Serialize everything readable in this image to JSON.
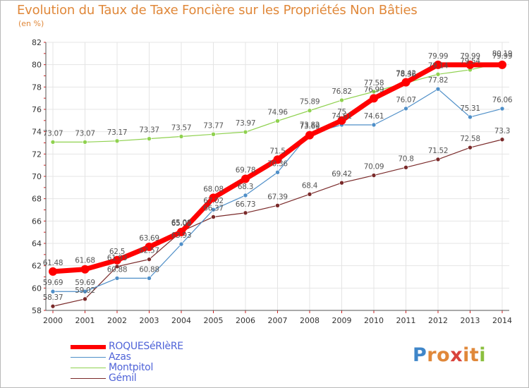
{
  "title": "Evolution du Taux de Taxe Foncière sur les Propriétés Non Bâties",
  "unit_label": "(en %)",
  "logo": {
    "text": "Proxiti",
    "letters": [
      "P",
      "r",
      "o",
      "x",
      "i",
      "t",
      "i"
    ],
    "colors": [
      "#3f86c9",
      "#e0883a",
      "#e0883a",
      "#d9433c",
      "#e0883a",
      "#e0883a",
      "#8bbf3f"
    ]
  },
  "chart_data": {
    "type": "line",
    "title": "Evolution du Taux de Taxe Foncière sur les Propriétés Non Bâties",
    "ylabel": "(en %)",
    "xlabel": "",
    "x": [
      "2000",
      "2001",
      "2002",
      "2003",
      "2004",
      "2005",
      "2006",
      "2007",
      "2008",
      "2009",
      "2010",
      "2011",
      "2012",
      "2013",
      "2014"
    ],
    "ylim": [
      58,
      82
    ],
    "yticks": [
      "58",
      "60",
      "62",
      "64",
      "66",
      "68",
      "70",
      "72",
      "74",
      "76",
      "78",
      "80",
      "82"
    ],
    "grid": true,
    "legend_position": "bottom-left",
    "series": [
      {
        "name": "ROQUESéRIèRE",
        "color": "#ff0000",
        "values": [
          61.48,
          61.68,
          62.5,
          63.69,
          65.02,
          68.08,
          69.78,
          71.5,
          73.69,
          75,
          76.99,
          78.42,
          79.99,
          79.99,
          79.99
        ],
        "labels": [
          "61.48",
          "61.68",
          "62.5",
          "63.69",
          "65.02",
          "68.08",
          "69.78",
          "71.5",
          "73.69",
          "75",
          "76.99",
          "78.42",
          "79.99",
          "79.99",
          "79.99"
        ]
      },
      {
        "name": "Azas",
        "color": "#4f8fc8",
        "values": [
          59.69,
          59.69,
          60.88,
          60.88,
          63.93,
          67.02,
          68.3,
          70.36,
          73.82,
          74.61,
          74.61,
          76.07,
          77.82,
          75.31,
          76.06
        ],
        "labels": [
          "59.69",
          "59.69",
          "60.88",
          "60.88",
          "63.93",
          "67.02",
          "68.3",
          "70.36",
          "73.82",
          "74.61",
          "74.61",
          "76.07",
          "77.82",
          "75.31",
          "76.06"
        ]
      },
      {
        "name": "Montpitol",
        "color": "#8fd14f",
        "values": [
          73.07,
          73.07,
          73.17,
          73.37,
          73.57,
          73.77,
          73.97,
          74.96,
          75.89,
          76.82,
          77.58,
          78.36,
          79.14,
          79.54,
          80.19
        ],
        "labels": [
          "73.07",
          "73.07",
          "73.17",
          "73.37",
          "73.57",
          "73.77",
          "73.97",
          "74.96",
          "75.89",
          "76.82",
          "77.58",
          "78.36",
          "79.14",
          "79.54",
          "80.19"
        ]
      },
      {
        "name": "Gémil",
        "color": "#7a2a2a",
        "values": [
          58.37,
          59.02,
          61.93,
          62.57,
          65.06,
          66.37,
          66.73,
          67.39,
          68.4,
          69.42,
          70.09,
          70.8,
          71.52,
          72.58,
          73.3
        ],
        "labels": [
          "58.37",
          "59.02",
          "61.93",
          "62.57",
          "65.06",
          "66.37",
          "66.73",
          "67.39",
          "68.4",
          "69.42",
          "70.09",
          "70.8",
          "71.52",
          "72.58",
          "73.3"
        ]
      }
    ]
  },
  "colors": {
    "title": "#e0883a",
    "grid": "#e4e4e4",
    "axis": "#555555",
    "legend_text": "#4f63d8"
  }
}
